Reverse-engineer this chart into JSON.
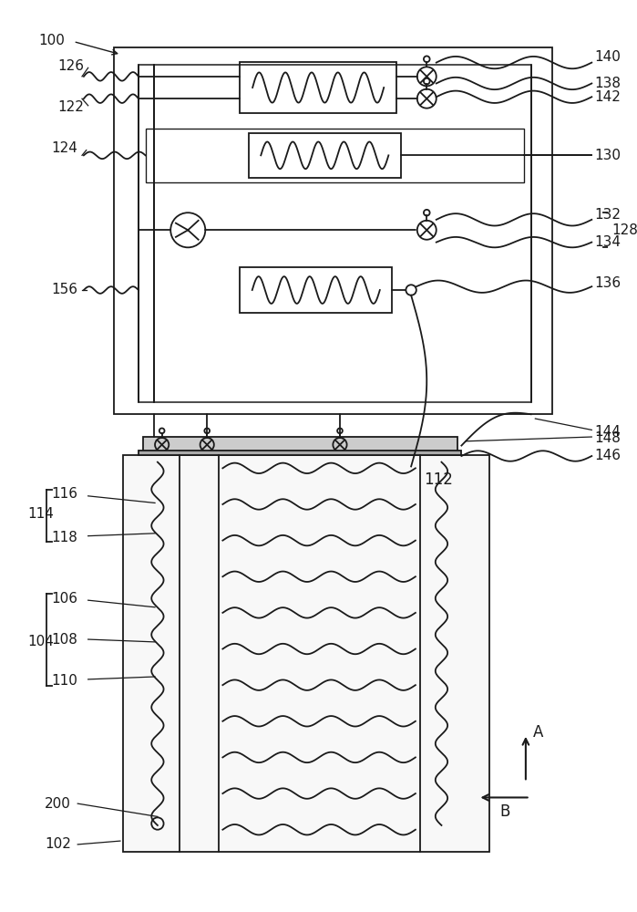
{
  "bg_color": "#ffffff",
  "line_color": "#1a1a1a",
  "font_size": 11
}
